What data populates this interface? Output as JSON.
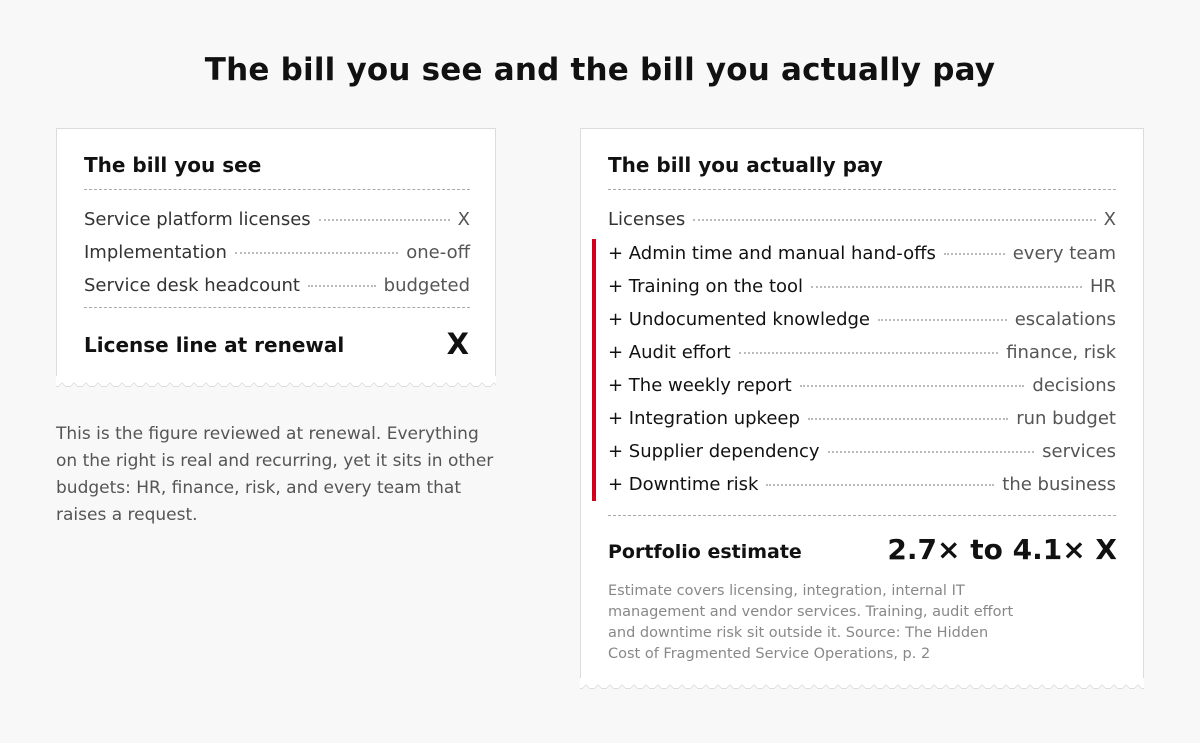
{
  "title": "The bill you see and the bill you actually pay",
  "left": {
    "heading": "The bill you see",
    "rows": [
      {
        "label": "Service platform licenses",
        "value": "X"
      },
      {
        "label": "Implementation",
        "value": "one-off"
      },
      {
        "label": "Service desk headcount",
        "value": "budgeted"
      }
    ],
    "total_label": "License line at renewal",
    "total_value": "X"
  },
  "left_note": "This is the figure reviewed at renewal. Everything on the right is real and recurring, yet it sits in other budgets: HR, finance, risk, and every team that raises a request.",
  "right": {
    "heading": "The bill you actually pay",
    "base_row": {
      "label": "Licenses",
      "value": "X"
    },
    "rows": [
      {
        "label": "+ Admin time and manual hand-offs",
        "value": "every team"
      },
      {
        "label": "+ Training on the tool",
        "value": "HR"
      },
      {
        "label": "+ Undocumented knowledge",
        "value": "escalations"
      },
      {
        "label": "+ Audit effort",
        "value": "finance, risk"
      },
      {
        "label": "+ The weekly report",
        "value": "decisions"
      },
      {
        "label": "+ Integration upkeep",
        "value": "run budget"
      },
      {
        "label": "+ Supplier dependency",
        "value": "services"
      },
      {
        "label": "+ Downtime risk",
        "value": "the business"
      }
    ],
    "total_label": "Portfolio estimate",
    "total_value": "2.7× to 4.1× X",
    "source": "Estimate covers licensing, integration, internal IT management and vendor services. Training, audit effort and downtime risk sit outside it. Source: The Hidden Cost of Fragmented Service Operations, p. 2"
  },
  "colors": {
    "accent": "#d0021b",
    "background": "#f8f8f8",
    "receipt": "#ffffff"
  }
}
